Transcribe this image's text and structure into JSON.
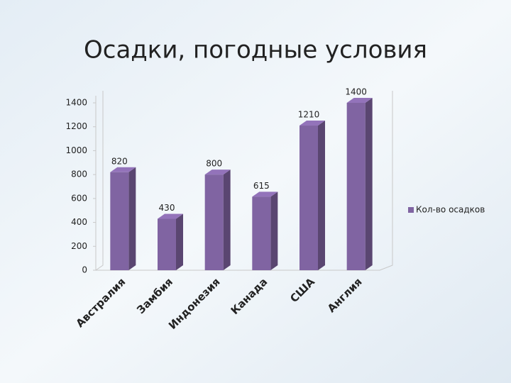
{
  "chart_data": {
    "type": "bar3d",
    "title": "Осадки, погодные условия",
    "categories": [
      "Австралия",
      "Замбия",
      "Индонезия",
      "Канада",
      "США",
      "Англия"
    ],
    "series": [
      {
        "name": "Кол-во осадков",
        "color": "#8064a2",
        "values": [
          820,
          430,
          800,
          615,
          1210,
          1400
        ]
      }
    ],
    "ylim": [
      0,
      1400
    ],
    "yticks": [
      0,
      200,
      400,
      600,
      800,
      1000,
      1200,
      1400
    ],
    "legend": "right"
  }
}
